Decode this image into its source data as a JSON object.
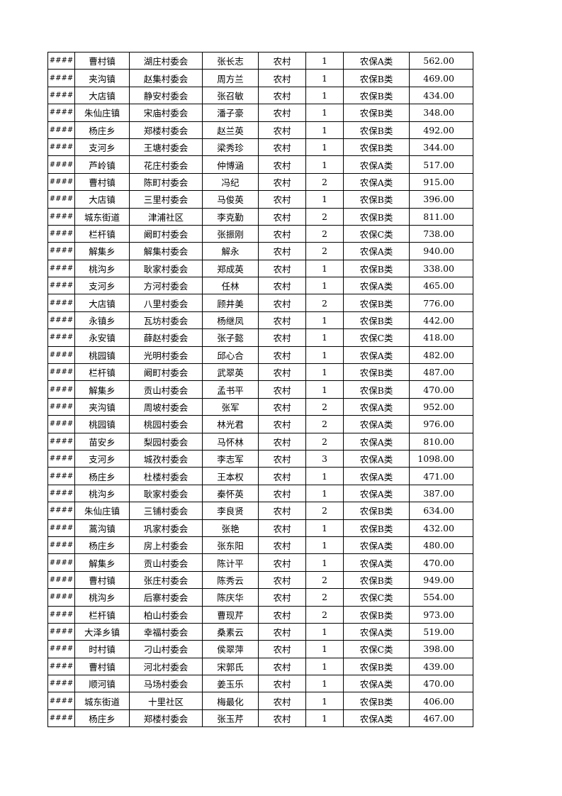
{
  "table": {
    "rows": [
      [
        "####",
        "曹村镇",
        "湖庄村委会",
        "张长志",
        "农村",
        "1",
        "农保A类",
        "562.00"
      ],
      [
        "####",
        "夹沟镇",
        "赵集村委会",
        "周方兰",
        "农村",
        "1",
        "农保B类",
        "469.00"
      ],
      [
        "####",
        "大店镇",
        "静安村委会",
        "张召敏",
        "农村",
        "1",
        "农保B类",
        "434.00"
      ],
      [
        "####",
        "朱仙庄镇",
        "宋庙村委会",
        "潘子豪",
        "农村",
        "1",
        "农保B类",
        "348.00"
      ],
      [
        "####",
        "杨庄乡",
        "郑楼村委会",
        "赵兰英",
        "农村",
        "1",
        "农保B类",
        "492.00"
      ],
      [
        "####",
        "支河乡",
        "王塘村委会",
        "梁秀珍",
        "农村",
        "1",
        "农保B类",
        "344.00"
      ],
      [
        "####",
        "芦岭镇",
        "花庄村委会",
        "仲博涵",
        "农村",
        "1",
        "农保A类",
        "517.00"
      ],
      [
        "####",
        "曹村镇",
        "陈町村委会",
        "冯纪",
        "农村",
        "2",
        "农保A类",
        "915.00"
      ],
      [
        "####",
        "大店镇",
        "三里村委会",
        "马俊英",
        "农村",
        "1",
        "农保B类",
        "396.00"
      ],
      [
        "####",
        "城东街道",
        "津浦社区",
        "李克勤",
        "农村",
        "2",
        "农保B类",
        "811.00"
      ],
      [
        "####",
        "栏杆镇",
        "阚町村委会",
        "张振刚",
        "农村",
        "2",
        "农保C类",
        "738.00"
      ],
      [
        "####",
        "解集乡",
        "解集村委会",
        "解永",
        "农村",
        "2",
        "农保A类",
        "940.00"
      ],
      [
        "####",
        "桃沟乡",
        "耿家村委会",
        "郑成英",
        "农村",
        "1",
        "农保B类",
        "338.00"
      ],
      [
        "####",
        "支河乡",
        "方河村委会",
        "任林",
        "农村",
        "1",
        "农保A类",
        "465.00"
      ],
      [
        "####",
        "大店镇",
        "八里村委会",
        "顾井美",
        "农村",
        "2",
        "农保B类",
        "776.00"
      ],
      [
        "####",
        "永镇乡",
        "瓦坊村委会",
        "杨继凤",
        "农村",
        "1",
        "农保B类",
        "442.00"
      ],
      [
        "####",
        "永安镇",
        "薛赵村委会",
        "张子懿",
        "农村",
        "1",
        "农保C类",
        "418.00"
      ],
      [
        "####",
        "桃园镇",
        "光明村委会",
        "邱心合",
        "农村",
        "1",
        "农保A类",
        "482.00"
      ],
      [
        "####",
        "栏杆镇",
        "阚町村委会",
        "武翠英",
        "农村",
        "1",
        "农保B类",
        "487.00"
      ],
      [
        "####",
        "解集乡",
        "贡山村委会",
        "孟书平",
        "农村",
        "1",
        "农保B类",
        "470.00"
      ],
      [
        "####",
        "夹沟镇",
        "周坡村委会",
        "张军",
        "农村",
        "2",
        "农保A类",
        "952.00"
      ],
      [
        "####",
        "桃园镇",
        "桃园村委会",
        "林光君",
        "农村",
        "2",
        "农保A类",
        "976.00"
      ],
      [
        "####",
        "苗安乡",
        "梨园村委会",
        "马怀林",
        "农村",
        "2",
        "农保A类",
        "810.00"
      ],
      [
        "####",
        "支河乡",
        "城孜村委会",
        "李志军",
        "农村",
        "3",
        "农保A类",
        "1098.00"
      ],
      [
        "####",
        "杨庄乡",
        "杜楼村委会",
        "王本权",
        "农村",
        "1",
        "农保A类",
        "471.00"
      ],
      [
        "####",
        "桃沟乡",
        "耿家村委会",
        "秦怀英",
        "农村",
        "1",
        "农保A类",
        "387.00"
      ],
      [
        "####",
        "朱仙庄镇",
        "三铺村委会",
        "李良贤",
        "农村",
        "2",
        "农保B类",
        "634.00"
      ],
      [
        "####",
        "蒿沟镇",
        "巩家村委会",
        "张艳",
        "农村",
        "1",
        "农保B类",
        "432.00"
      ],
      [
        "####",
        "杨庄乡",
        "房上村委会",
        "张东阳",
        "农村",
        "1",
        "农保A类",
        "480.00"
      ],
      [
        "####",
        "解集乡",
        "贡山村委会",
        "陈计平",
        "农村",
        "1",
        "农保A类",
        "470.00"
      ],
      [
        "####",
        "曹村镇",
        "张庄村委会",
        "陈秀云",
        "农村",
        "2",
        "农保B类",
        "949.00"
      ],
      [
        "####",
        "桃沟乡",
        "后寨村委会",
        "陈庆华",
        "农村",
        "2",
        "农保C类",
        "554.00"
      ],
      [
        "####",
        "栏杆镇",
        "柏山村委会",
        "曹现芹",
        "农村",
        "2",
        "农保B类",
        "973.00"
      ],
      [
        "####",
        "大泽乡镇",
        "幸福村委会",
        "桑素云",
        "农村",
        "1",
        "农保A类",
        "519.00"
      ],
      [
        "####",
        "时村镇",
        "刁山村委会",
        "侯翠萍",
        "农村",
        "1",
        "农保C类",
        "398.00"
      ],
      [
        "####",
        "曹村镇",
        "河北村委会",
        "宋郭氏",
        "农村",
        "1",
        "农保B类",
        "439.00"
      ],
      [
        "####",
        "顺河镇",
        "马场村委会",
        "姜玉乐",
        "农村",
        "1",
        "农保A类",
        "470.00"
      ],
      [
        "####",
        "城东街道",
        "十里社区",
        "梅最化",
        "农村",
        "1",
        "农保B类",
        "406.00"
      ],
      [
        "####",
        "杨庄乡",
        "郑楼村委会",
        "张玉芹",
        "农村",
        "1",
        "农保A类",
        "467.00"
      ]
    ]
  }
}
